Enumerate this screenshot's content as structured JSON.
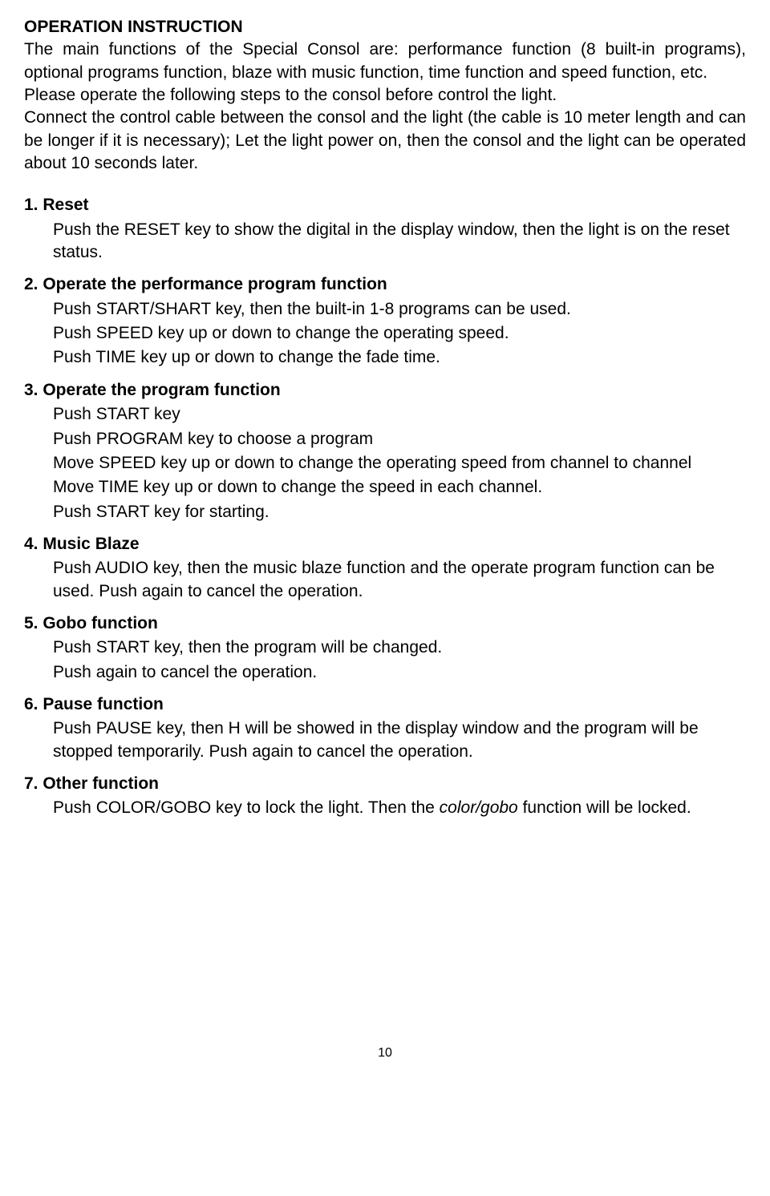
{
  "title": "OPERATION INSTRUCTION",
  "intro_p1": "The main functions of the Special Consol are: performance function (8 built-in programs), optional programs function, blaze with music function, time function and speed function, etc.",
  "intro_p2": "Please operate the following steps to the consol before control the light.",
  "intro_p3": "Connect the control cable between the consol and the light (the cable is 10 meter length and can be longer if it is necessary); Let the light power on, then the consol and the light can be operated about 10 seconds later.",
  "sections": [
    {
      "title": "1. Reset",
      "lines": [
        "Push the RESET key to show the digital in the display window, then the light is on the reset status."
      ]
    },
    {
      "title": "2. Operate the performance program function",
      "lines": [
        "Push START/SHART key, then the built-in 1-8 programs can be used.",
        "Push SPEED key up or down to change the operating speed.",
        "Push TIME key up or down to change the fade time."
      ]
    },
    {
      "title": "3. Operate the program function",
      "lines": [
        "Push START key",
        "Push PROGRAM key to choose a program",
        "Move SPEED key up or down to change the operating speed from channel to channel",
        "Move TIME key up or down to change the speed in each channel.",
        "Push START key for starting."
      ]
    },
    {
      "title": "4. Music Blaze",
      "lines": [
        "Push AUDIO key, then the music blaze function and the operate program function can be used. Push again to cancel the operation."
      ]
    },
    {
      "title": "5. Gobo function",
      "lines": [
        "Push START key, then the program will be changed.",
        "Push again to cancel the operation."
      ]
    },
    {
      "title": "6. Pause function",
      "lines": [
        "Push PAUSE key, then H will be showed in the display window and the program will be stopped temporarily. Push again to cancel the operation."
      ]
    },
    {
      "title": "7. Other function",
      "special": {
        "prefix": "Push COLOR/GOBO key to lock the light. Then the ",
        "italic": "color/gobo",
        "suffix": " function will be locked."
      }
    }
  ],
  "page_number": "10"
}
